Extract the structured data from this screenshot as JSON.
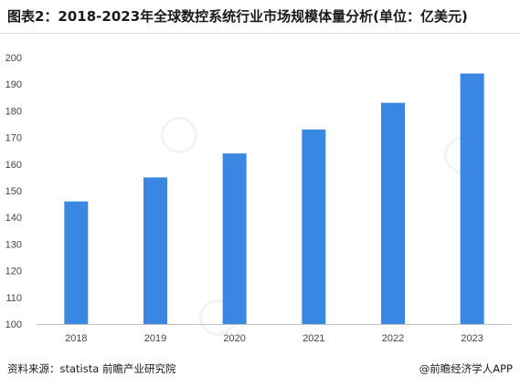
{
  "header": {
    "title": "图表2：2018-2023年全球数控系统行业市场规模体量分析(单位：亿美元)"
  },
  "footer": {
    "source": "资料来源：statista 前瞻产业研究院",
    "credit": "@前瞻经济学人APP"
  },
  "colors": {
    "bar": "#3a87e3",
    "axis": "#bfbfbf",
    "text": "#444444"
  },
  "chart_data": {
    "type": "bar",
    "title": "",
    "xlabel": "",
    "ylabel": "",
    "categories": [
      "2018",
      "2019",
      "2020",
      "2021",
      "2022",
      "2023"
    ],
    "series": [
      {
        "values": [
          146,
          155,
          164,
          173,
          183,
          194
        ]
      }
    ],
    "ylim": [
      100,
      200
    ],
    "yticks": [
      100,
      110,
      120,
      130,
      140,
      150,
      160,
      170,
      180,
      190,
      200
    ],
    "grid": false,
    "legend": "none"
  }
}
